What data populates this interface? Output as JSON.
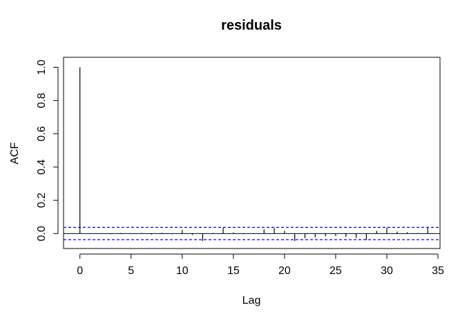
{
  "chart_data": {
    "type": "bar",
    "title": "residuals",
    "xlabel": "Lag",
    "ylabel": "ACF",
    "xlim": [
      -1.6,
      35.2
    ],
    "ylim": [
      -0.09,
      1.06
    ],
    "xticks": [
      "0",
      "5",
      "10",
      "15",
      "20",
      "25",
      "30",
      "35"
    ],
    "yticks": [
      "0.0",
      "0.2",
      "0.4",
      "0.6",
      "0.8",
      "1.0"
    ],
    "confidence_band": [
      0.037,
      -0.037
    ],
    "lag": [
      0,
      1,
      2,
      3,
      4,
      5,
      6,
      7,
      8,
      9,
      10,
      11,
      12,
      13,
      14,
      15,
      16,
      17,
      18,
      19,
      20,
      21,
      22,
      23,
      24,
      25,
      26,
      27,
      28,
      29,
      30,
      31,
      32,
      33,
      34
    ],
    "acf": [
      1.0,
      -0.003,
      0.002,
      -0.004,
      0.003,
      -0.002,
      0.004,
      -0.006,
      0.005,
      -0.004,
      0.022,
      -0.008,
      -0.045,
      0.004,
      0.035,
      0.006,
      -0.004,
      0.003,
      0.025,
      0.032,
      0.016,
      -0.045,
      -0.028,
      -0.022,
      -0.016,
      -0.014,
      -0.02,
      -0.026,
      -0.038,
      0.016,
      0.036,
      0.012,
      0.008,
      0.003,
      0.034
    ],
    "series_color": "#000000",
    "band_color": "#0000FF"
  }
}
